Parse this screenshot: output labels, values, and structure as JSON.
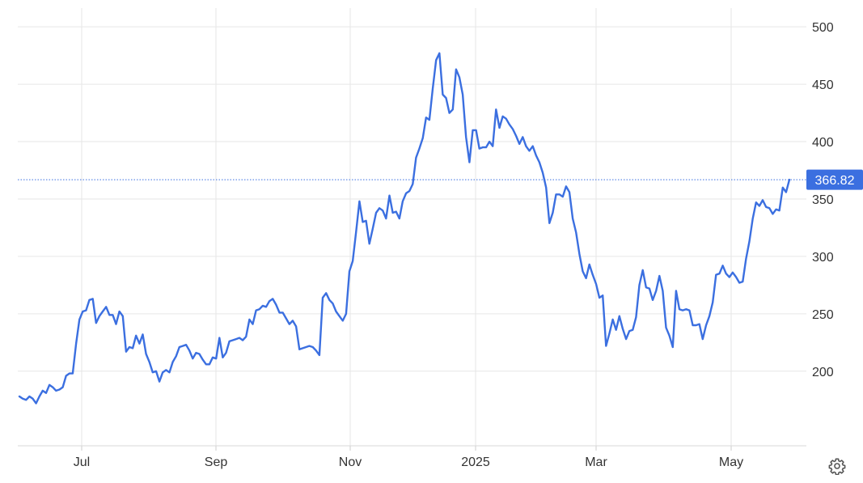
{
  "chart_data": {
    "type": "line",
    "title": "",
    "xlabel": "",
    "ylabel": "",
    "ylim": [
      135,
      510
    ],
    "y_ticks": [
      200,
      250,
      300,
      350,
      400,
      450,
      500
    ],
    "x_tick_labels": [
      "Jul",
      "Sep",
      "Nov",
      "2025",
      "Mar",
      "May"
    ],
    "grid": true,
    "last_value": "366.82",
    "colors": {
      "line": "#3b6fe0",
      "label_bg": "#3b6fe0",
      "grid": "#e6e6e6"
    },
    "series": [
      {
        "values": [
          178,
          176,
          175,
          178,
          176,
          172,
          178,
          183,
          181,
          188,
          186,
          183,
          184,
          186,
          196,
          198,
          198,
          224,
          245,
          252,
          253,
          262,
          263,
          242,
          248,
          252,
          256,
          249,
          249,
          241,
          252,
          248,
          217,
          221,
          220,
          231,
          224,
          232,
          215,
          208,
          199,
          200,
          191,
          199,
          201,
          199,
          208,
          213,
          221,
          222,
          223,
          218,
          211,
          216,
          215,
          210,
          206,
          206,
          212,
          211,
          229,
          212,
          216,
          226,
          227,
          228,
          229,
          227,
          230,
          245,
          241,
          253,
          254,
          257,
          256,
          261,
          263,
          258,
          251,
          251,
          246,
          241,
          244,
          239,
          219,
          220,
          221,
          222,
          221,
          218,
          214,
          264,
          268,
          262,
          259,
          252,
          248,
          244,
          250,
          287,
          296,
          321,
          348,
          330,
          331,
          311,
          324,
          338,
          342,
          340,
          333,
          353,
          338,
          339,
          333,
          348,
          355,
          357,
          363,
          386,
          394,
          403,
          421,
          419,
          446,
          471,
          477,
          441,
          438,
          425,
          428,
          463,
          456,
          441,
          404,
          382,
          410,
          410,
          394,
          395,
          395,
          400,
          396,
          428,
          412,
          422,
          420,
          415,
          411,
          405,
          398,
          404,
          396,
          392,
          396,
          388,
          382,
          373,
          360,
          329,
          338,
          354,
          354,
          352,
          361,
          356,
          333,
          321,
          302,
          287,
          281,
          293,
          284,
          276,
          264,
          266,
          222,
          233,
          245,
          236,
          248,
          237,
          228,
          235,
          236,
          247,
          275,
          288,
          273,
          272,
          262,
          270,
          283,
          270,
          238,
          231,
          221,
          270,
          254,
          253,
          254,
          253,
          240,
          240,
          241,
          228,
          240,
          248,
          260,
          284,
          285,
          292,
          285,
          282,
          286,
          282,
          277,
          278,
          298,
          313,
          333,
          347,
          344,
          349,
          343,
          342,
          337,
          341,
          340,
          360,
          356,
          366.82
        ]
      }
    ]
  }
}
